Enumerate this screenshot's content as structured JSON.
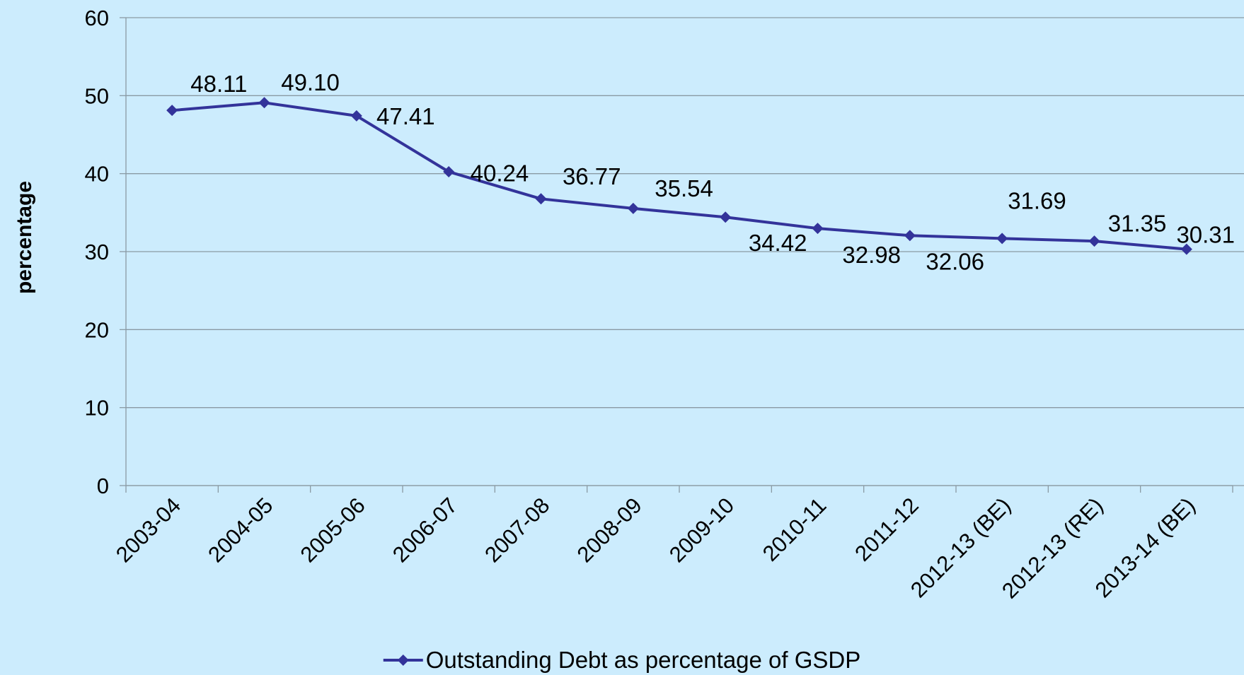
{
  "chart_data": {
    "type": "line",
    "y_label": "percentage",
    "categories": [
      "2003-04",
      "2004-05",
      "2005-06",
      "2006-07",
      "2007-08",
      "2008-09",
      "2009-10",
      "2010-11",
      "2011-12",
      "2012-13 (BE)",
      "2012-13 (RE)",
      "2013-14 (BE)"
    ],
    "series": [
      {
        "name": "Outstanding Debt as percentage of GSDP",
        "color": "#33339a",
        "values": [
          48.11,
          49.1,
          47.41,
          40.24,
          36.77,
          35.54,
          34.42,
          32.98,
          32.06,
          31.69,
          31.35,
          30.31
        ],
        "value_labels": [
          "48.11",
          "49.10",
          "47.41",
          "40.24",
          "36.77",
          "35.54",
          "34.42",
          "32.98",
          "32.06",
          "31.69",
          "31.35",
          "30.31"
        ]
      }
    ],
    "ylim": [
      0,
      60
    ],
    "yticks": [
      0,
      10,
      20,
      30,
      40,
      50,
      60
    ],
    "grid": true,
    "legend": "bottom"
  }
}
